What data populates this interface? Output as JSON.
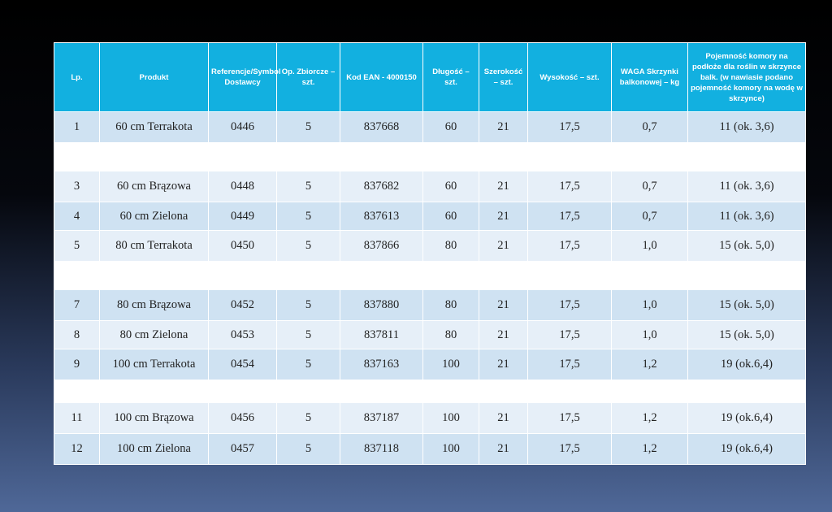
{
  "columns": [
    "Lp.",
    "Produkt",
    "Referencje/Symbol Dostawcy",
    "Op. Zbiorcze – szt.",
    "Kod EAN - 4000150",
    "Długość – szt.",
    "Szerokość – szt.",
    "Wysokość – szt.",
    "WAGA Skrzynki balkonowej – kg",
    "Pojemność komory na podłoże dla roślin w skrzynce balk. (w nawiasie podano pojemność komory na wodę w skrzynce)"
  ],
  "rows": [
    {
      "lp": "1",
      "produkt": "60 cm Terrakota",
      "ref": "0446",
      "op": "5",
      "ean": "837668",
      "dl": "60",
      "sz": "21",
      "wys": "17,5",
      "waga": "0,7",
      "poj": "11 (ok. 3,6)"
    },
    {
      "lp": "",
      "produkt": "",
      "ref": "",
      "op": "",
      "ean": "",
      "dl": "",
      "sz": "",
      "wys": "",
      "waga": "",
      "poj": ""
    },
    {
      "lp": "3",
      "produkt": "60 cm Brązowa",
      "ref": "0448",
      "op": "5",
      "ean": "837682",
      "dl": "60",
      "sz": "21",
      "wys": "17,5",
      "waga": "0,7",
      "poj": "11 (ok. 3,6)"
    },
    {
      "lp": "4",
      "produkt": "60 cm Zielona",
      "ref": "0449",
      "op": "5",
      "ean": "837613",
      "dl": "60",
      "sz": "21",
      "wys": "17,5",
      "waga": "0,7",
      "poj": "11 (ok. 3,6)"
    },
    {
      "lp": "5",
      "produkt": "80 cm Terrakota",
      "ref": "0450",
      "op": "5",
      "ean": "837866",
      "dl": "80",
      "sz": "21",
      "wys": "17,5",
      "waga": "1,0",
      "poj": "15 (ok. 5,0)"
    },
    {
      "lp": "",
      "produkt": "",
      "ref": "",
      "op": "",
      "ean": "",
      "dl": "",
      "sz": "",
      "wys": "",
      "waga": "",
      "poj": ""
    },
    {
      "lp": "7",
      "produkt": "80 cm Brązowa",
      "ref": "0452",
      "op": "5",
      "ean": "837880",
      "dl": "80",
      "sz": "21",
      "wys": "17,5",
      "waga": "1,0",
      "poj": "15 (ok. 5,0)"
    },
    {
      "lp": "8",
      "produkt": "80 cm Zielona",
      "ref": "0453",
      "op": "5",
      "ean": "837811",
      "dl": "80",
      "sz": "21",
      "wys": "17,5",
      "waga": "1,0",
      "poj": "15 (ok. 5,0)"
    },
    {
      "lp": "9",
      "produkt": "100 cm Terrakota",
      "ref": "0454",
      "op": "5",
      "ean": "837163",
      "dl": "100",
      "sz": "21",
      "wys": "17,5",
      "waga": "1,2",
      "poj": "19 (ok.6,4)"
    },
    {
      "lp": "",
      "produkt": "",
      "ref": "",
      "op": "",
      "ean": "",
      "dl": "",
      "sz": "",
      "wys": "",
      "waga": "",
      "poj": ""
    },
    {
      "lp": "11",
      "produkt": "100 cm Brązowa",
      "ref": "0456",
      "op": "5",
      "ean": "837187",
      "dl": "100",
      "sz": "21",
      "wys": "17,5",
      "waga": "1,2",
      "poj": "19 (ok.6,4)"
    },
    {
      "lp": "12",
      "produkt": "100 cm Zielona",
      "ref": "0457",
      "op": "5",
      "ean": "837118",
      "dl": "100",
      "sz": "21",
      "wys": "17,5",
      "waga": "1,2",
      "poj": "19 (ok.6,4)"
    }
  ],
  "colors": {
    "header_bg": "#12b0e0",
    "row_odd": "#cfe2f2",
    "row_even": "#e6eff8"
  }
}
